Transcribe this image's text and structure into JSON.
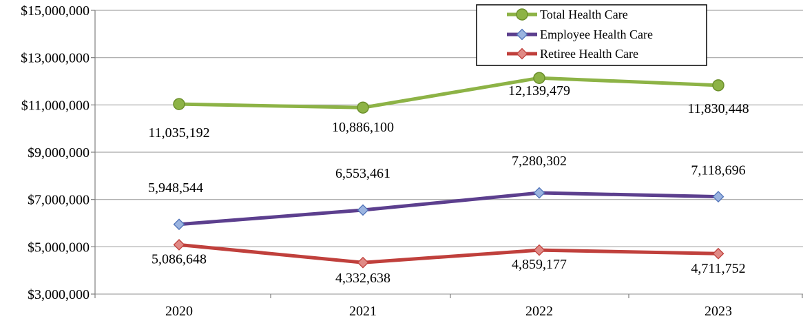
{
  "chart_data": {
    "type": "line",
    "title": "",
    "xlabel": "",
    "ylabel": "",
    "categories": [
      "2020",
      "2021",
      "2022",
      "2023"
    ],
    "ylim": [
      3000000,
      15000000
    ],
    "yticks": [
      3000000,
      5000000,
      7000000,
      9000000,
      11000000,
      13000000,
      15000000
    ],
    "ytick_labels": [
      "$3,000,000",
      "$5,000,000",
      "$7,000,000",
      "$9,000,000",
      "$11,000,000",
      "$13,000,000",
      "$15,000,000"
    ],
    "grid": "horizontal",
    "legend_position": "top-right",
    "series": [
      {
        "name": "Total Health Care",
        "color": "#8db346",
        "marker": "circle",
        "values": [
          11035192,
          10886100,
          12139479,
          11830448
        ],
        "labels": [
          "11,035,192",
          "10,886,100",
          "12,139,479",
          "11,830,448"
        ]
      },
      {
        "name": "Employee Health Care",
        "color": "#5c3f8e",
        "marker": "diamond",
        "values": [
          5948544,
          6553461,
          7280302,
          7118696
        ],
        "labels": [
          "5,948,544",
          "6,553,461",
          "7,280,302",
          "7,118,696"
        ]
      },
      {
        "name": "Retiree Health Care",
        "color": "#c0403c",
        "marker": "diamond",
        "values": [
          5086648,
          4332638,
          4859177,
          4711752
        ],
        "labels": [
          "5,086,648",
          "4,332,638",
          "4,859,177",
          "4,711,752"
        ]
      }
    ]
  }
}
